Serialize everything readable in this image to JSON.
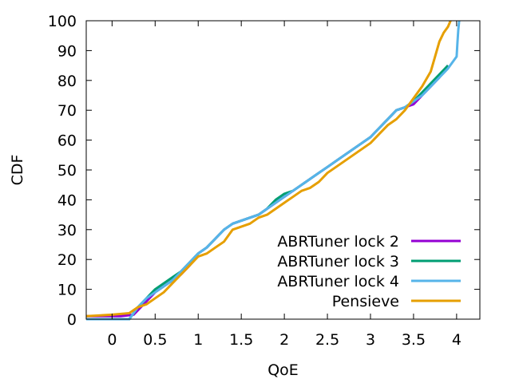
{
  "chart_data": {
    "type": "line",
    "title": "",
    "xlabel": "QoE",
    "ylabel": "CDF",
    "xlim": [
      -0.3,
      4.27
    ],
    "ylim": [
      0,
      100
    ],
    "x_ticks": [
      0,
      0.5,
      1,
      1.5,
      2,
      2.5,
      3,
      3.5,
      4
    ],
    "x_tick_labels": [
      "0",
      "0.5",
      "1",
      "1.5",
      "2",
      "2.5",
      "3",
      "3.5",
      "4"
    ],
    "y_ticks": [
      0,
      10,
      20,
      30,
      40,
      50,
      60,
      70,
      80,
      90,
      100
    ],
    "y_tick_labels": [
      "0",
      "10",
      "20",
      "30",
      "40",
      "50",
      "60",
      "70",
      "80",
      "90",
      "100"
    ],
    "grid": false,
    "legend_position": "bottom-right",
    "series": [
      {
        "name": "ABRTuner lock 2",
        "color": "#9400d3",
        "points": [
          [
            -0.3,
            1
          ],
          [
            0.1,
            1
          ],
          [
            0.25,
            1.5
          ],
          [
            0.3,
            3
          ],
          [
            0.4,
            6
          ],
          [
            0.5,
            9
          ],
          [
            0.6,
            11
          ],
          [
            0.7,
            13
          ],
          [
            0.8,
            15
          ],
          [
            0.9,
            18
          ],
          [
            1.0,
            22
          ],
          [
            1.1,
            24
          ],
          [
            1.2,
            27
          ],
          [
            1.3,
            30
          ],
          [
            1.4,
            32
          ],
          [
            1.5,
            33
          ],
          [
            1.6,
            34
          ],
          [
            1.7,
            35
          ],
          [
            1.8,
            37
          ],
          [
            1.9,
            39
          ],
          [
            2.0,
            41
          ],
          [
            2.1,
            43
          ],
          [
            2.2,
            45
          ],
          [
            2.3,
            47
          ],
          [
            2.4,
            49
          ],
          [
            2.5,
            51
          ],
          [
            2.6,
            53
          ],
          [
            2.7,
            55
          ],
          [
            2.8,
            57
          ],
          [
            2.9,
            59
          ],
          [
            3.0,
            61
          ],
          [
            3.1,
            64
          ],
          [
            3.2,
            67
          ],
          [
            3.3,
            70
          ],
          [
            3.4,
            71
          ],
          [
            3.5,
            72
          ],
          [
            3.6,
            75
          ],
          [
            3.7,
            78
          ],
          [
            3.8,
            81
          ],
          [
            3.87,
            84
          ],
          [
            3.9,
            85
          ]
        ]
      },
      {
        "name": "ABRTuner lock 3",
        "color": "#009e73",
        "points": [
          [
            -0.3,
            0
          ],
          [
            0.2,
            0
          ],
          [
            0.25,
            2
          ],
          [
            0.3,
            4
          ],
          [
            0.4,
            7
          ],
          [
            0.5,
            10
          ],
          [
            0.6,
            12
          ],
          [
            0.7,
            14
          ],
          [
            0.8,
            16
          ],
          [
            0.9,
            19
          ],
          [
            1.0,
            22
          ],
          [
            1.1,
            24
          ],
          [
            1.2,
            27
          ],
          [
            1.3,
            30
          ],
          [
            1.4,
            32
          ],
          [
            1.5,
            33
          ],
          [
            1.6,
            34
          ],
          [
            1.7,
            35
          ],
          [
            1.8,
            37
          ],
          [
            1.9,
            40
          ],
          [
            2.0,
            42
          ],
          [
            2.1,
            43
          ],
          [
            2.2,
            45
          ],
          [
            2.3,
            47
          ],
          [
            2.4,
            49
          ],
          [
            2.5,
            51
          ],
          [
            2.6,
            53
          ],
          [
            2.7,
            55
          ],
          [
            2.8,
            57
          ],
          [
            2.9,
            59
          ],
          [
            3.0,
            61
          ],
          [
            3.1,
            64
          ],
          [
            3.2,
            67
          ],
          [
            3.3,
            70
          ],
          [
            3.4,
            71
          ],
          [
            3.5,
            73
          ],
          [
            3.6,
            76
          ],
          [
            3.7,
            79
          ],
          [
            3.8,
            82
          ],
          [
            3.9,
            85
          ]
        ]
      },
      {
        "name": "ABRTuner lock 4",
        "color": "#56b4e9",
        "points": [
          [
            -0.3,
            0
          ],
          [
            0.2,
            0
          ],
          [
            0.25,
            2
          ],
          [
            0.3,
            4
          ],
          [
            0.4,
            7
          ],
          [
            0.5,
            9
          ],
          [
            0.6,
            11
          ],
          [
            0.7,
            13
          ],
          [
            0.8,
            16
          ],
          [
            0.9,
            19
          ],
          [
            1.0,
            22
          ],
          [
            1.1,
            24
          ],
          [
            1.2,
            27
          ],
          [
            1.3,
            30
          ],
          [
            1.4,
            32
          ],
          [
            1.5,
            33
          ],
          [
            1.6,
            34
          ],
          [
            1.7,
            35
          ],
          [
            1.8,
            37
          ],
          [
            1.9,
            39
          ],
          [
            2.0,
            41
          ],
          [
            2.1,
            43
          ],
          [
            2.2,
            45
          ],
          [
            2.3,
            47
          ],
          [
            2.4,
            49
          ],
          [
            2.5,
            51
          ],
          [
            2.6,
            53
          ],
          [
            2.7,
            55
          ],
          [
            2.8,
            57
          ],
          [
            2.9,
            59
          ],
          [
            3.0,
            61
          ],
          [
            3.1,
            64
          ],
          [
            3.2,
            67
          ],
          [
            3.3,
            70
          ],
          [
            3.4,
            71
          ],
          [
            3.5,
            73
          ],
          [
            3.6,
            75
          ],
          [
            3.7,
            78
          ],
          [
            3.8,
            81
          ],
          [
            3.9,
            84
          ],
          [
            4.0,
            88
          ],
          [
            4.01,
            93
          ],
          [
            4.02,
            97
          ],
          [
            4.03,
            100
          ]
        ]
      },
      {
        "name": "Pensieve",
        "color": "#e69f00",
        "points": [
          [
            -0.3,
            1
          ],
          [
            0.0,
            1.5
          ],
          [
            0.2,
            2
          ],
          [
            0.3,
            4
          ],
          [
            0.4,
            5
          ],
          [
            0.5,
            7
          ],
          [
            0.6,
            9
          ],
          [
            0.7,
            12
          ],
          [
            0.8,
            15
          ],
          [
            0.9,
            18
          ],
          [
            1.0,
            21
          ],
          [
            1.1,
            22
          ],
          [
            1.2,
            24
          ],
          [
            1.3,
            26
          ],
          [
            1.4,
            30
          ],
          [
            1.5,
            31
          ],
          [
            1.6,
            32
          ],
          [
            1.7,
            34
          ],
          [
            1.8,
            35
          ],
          [
            1.9,
            37
          ],
          [
            2.0,
            39
          ],
          [
            2.1,
            41
          ],
          [
            2.2,
            43
          ],
          [
            2.3,
            44
          ],
          [
            2.4,
            46
          ],
          [
            2.5,
            49
          ],
          [
            2.6,
            51
          ],
          [
            2.7,
            53
          ],
          [
            2.8,
            55
          ],
          [
            2.9,
            57
          ],
          [
            3.0,
            59
          ],
          [
            3.1,
            62
          ],
          [
            3.2,
            65
          ],
          [
            3.3,
            67
          ],
          [
            3.4,
            70
          ],
          [
            3.5,
            74
          ],
          [
            3.6,
            78
          ],
          [
            3.7,
            83
          ],
          [
            3.75,
            88
          ],
          [
            3.8,
            93
          ],
          [
            3.85,
            96
          ],
          [
            3.9,
            98
          ],
          [
            3.93,
            100
          ]
        ]
      }
    ]
  }
}
